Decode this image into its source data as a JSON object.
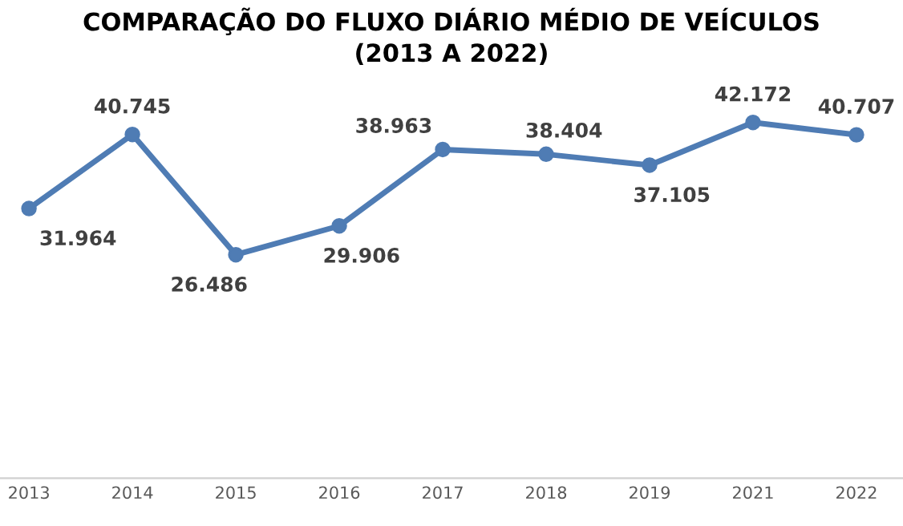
{
  "chart_data": {
    "type": "line",
    "title": "COMPARAÇÃO DO FLUXO DIÁRIO MÉDIO DE VEÍCULOS\n(2013 A 2022)",
    "categories": [
      "2013",
      "2014",
      "2015",
      "2016",
      "2017",
      "2018",
      "2019",
      "2021",
      "2022"
    ],
    "series": [
      {
        "color": "#4f7cb4",
        "values": [
          31964,
          40745,
          26486,
          29906,
          38963,
          38404,
          37105,
          42172,
          40707
        ],
        "value_labels": [
          "31.964",
          "40.745",
          "26.486",
          "29.906",
          "38.963",
          "38.404",
          "37.105",
          "42.172",
          "40.707"
        ]
      }
    ],
    "tick_labels": "x",
    "marker": "circle",
    "line_style": "solid",
    "grid": false,
    "legend": false
  }
}
